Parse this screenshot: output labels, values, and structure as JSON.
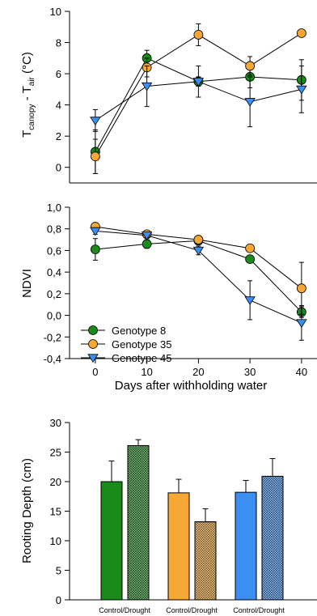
{
  "chart_data": [
    {
      "type": "line",
      "ylabel_main": "T",
      "ylabel_sub1": "canopy",
      "ylabel_mid": " - T",
      "ylabel_sub2": "air",
      "ylabel_unit": " (°C)",
      "ylim": [
        -1,
        10
      ],
      "xlim": [
        -5,
        43
      ],
      "y_ticks": [
        "0",
        "2",
        "4",
        "6",
        "8",
        "10"
      ],
      "x": [
        0,
        10,
        20,
        30,
        40
      ],
      "series": [
        {
          "key": "g8",
          "values": [
            1.0,
            7.0,
            5.5,
            5.8,
            5.6
          ],
          "err": [
            1.4,
            0.5,
            0.3,
            0.7,
            1.3
          ],
          "color": "#1a8a1a",
          "marker": "circle"
        },
        {
          "key": "g35",
          "values": [
            0.7,
            6.4,
            8.5,
            6.5,
            8.6
          ],
          "err": [
            1.1,
            0.6,
            0.7,
            0.6,
            0.0
          ],
          "color": "#f7a733",
          "marker": "circle"
        },
        {
          "key": "g45",
          "values": [
            3.0,
            5.2,
            5.5,
            4.2,
            5.0
          ],
          "err": [
            0.7,
            1.3,
            1.0,
            1.6,
            1.5
          ],
          "color": "#3b8ff3",
          "marker": "triangle-down"
        }
      ],
      "grid": false
    },
    {
      "type": "line",
      "ylabel": "NDVI",
      "xlabel": "Days after withholding water",
      "ylim": [
        -0.4,
        1.0
      ],
      "xlim": [
        -5,
        43
      ],
      "y_ticks": [
        "-0,4",
        "-0,2",
        "0,0",
        "0,2",
        "0,4",
        "0,6",
        "0,8",
        "1,0"
      ],
      "x_ticks": [
        "0",
        "10",
        "20",
        "30",
        "40"
      ],
      "x": [
        0,
        10,
        20,
        30,
        40
      ],
      "series": [
        {
          "key": "g8",
          "name": "Genotype 8",
          "values": [
            0.61,
            0.66,
            0.69,
            0.52,
            0.03
          ],
          "err": [
            0.1,
            0.04,
            0.02,
            0.03,
            0.05
          ],
          "color": "#1a8a1a",
          "marker": "circle"
        },
        {
          "key": "g35",
          "name": "Genotype 35",
          "values": [
            0.82,
            0.75,
            0.7,
            0.62,
            0.25
          ],
          "err": [
            0.03,
            0.03,
            0.02,
            0.03,
            0.24
          ],
          "color": "#f7a733",
          "marker": "circle"
        },
        {
          "key": "g45",
          "name": "Genotype 45",
          "values": [
            0.78,
            0.74,
            0.6,
            0.14,
            -0.07
          ],
          "err": [
            0.03,
            0.02,
            0.04,
            0.18,
            0.16
          ],
          "color": "#3b8ff3",
          "marker": "triangle-down"
        }
      ],
      "legend_position": "lower-left",
      "grid": false
    },
    {
      "type": "bar",
      "ylabel": "Rooting Depth (cm)",
      "ylim": [
        0,
        30
      ],
      "y_ticks": [
        "0",
        "5",
        "10",
        "15",
        "20",
        "25",
        "30"
      ],
      "x_tick_labels": [
        "Control/Drought",
        "Control/Drought",
        "Control/Drought"
      ],
      "bars": [
        {
          "group": 0,
          "treatment": "control",
          "value": 20.0,
          "err": 3.5,
          "color": "#1a8a1a"
        },
        {
          "group": 0,
          "treatment": "drought",
          "value": 26.1,
          "err": 1.0,
          "color": "#1a8a1a"
        },
        {
          "group": 1,
          "treatment": "control",
          "value": 18.1,
          "err": 2.3,
          "color": "#f7a733"
        },
        {
          "group": 1,
          "treatment": "drought",
          "value": 13.2,
          "err": 2.2,
          "color": "#f7a733"
        },
        {
          "group": 2,
          "treatment": "control",
          "value": 18.2,
          "err": 2.0,
          "color": "#3b8ff3"
        },
        {
          "group": 2,
          "treatment": "drought",
          "value": 20.9,
          "err": 3.0,
          "color": "#3b8ff3"
        }
      ],
      "grid": false
    }
  ]
}
